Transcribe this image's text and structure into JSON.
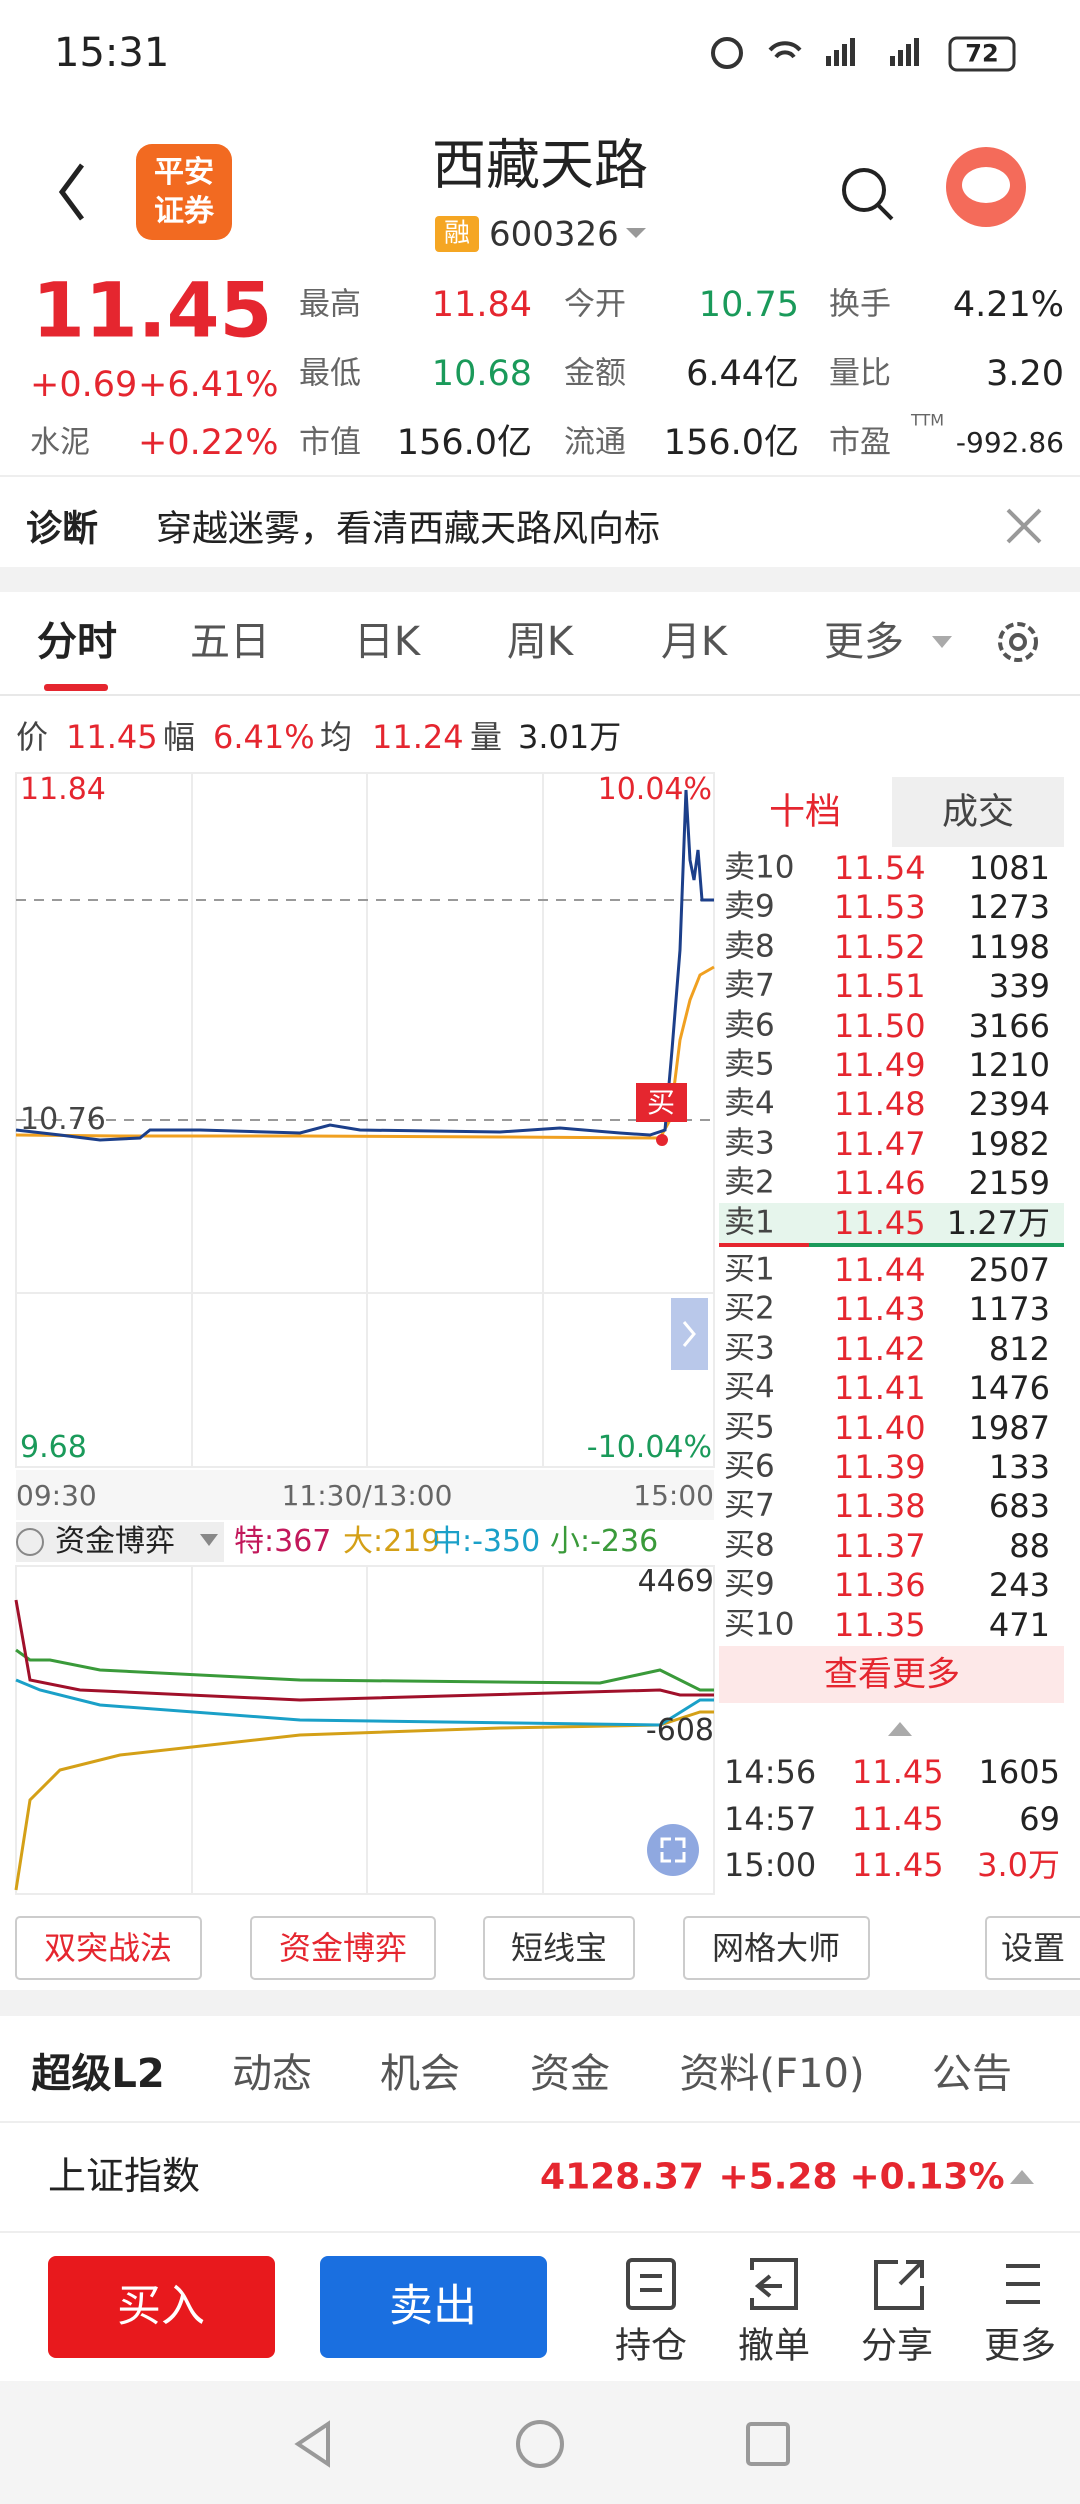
{
  "status_bar": {
    "time": "15:31",
    "battery": "72"
  },
  "header": {
    "logo": [
      "平安",
      "证券"
    ],
    "title": "西藏天路",
    "badge": "融",
    "code": "600326"
  },
  "quote": {
    "price": "11.45",
    "change": "+0.69",
    "change_pct": "+6.41%",
    "sector": "水泥",
    "sector_pct": "+0.22%",
    "ttm": "TTM",
    "stats": [
      [
        [
          "最高",
          "11.84"
        ],
        [
          "今开",
          "10.75"
        ],
        [
          "换手",
          "4.21%"
        ]
      ],
      [
        [
          "最低",
          "10.68"
        ],
        [
          "金额",
          "6.44亿"
        ],
        [
          "量比",
          "3.20"
        ]
      ],
      [
        [
          "市值",
          "156.0亿"
        ],
        [
          "流通",
          "156.0亿"
        ],
        [
          "市盈",
          "-992.86"
        ]
      ]
    ]
  },
  "diagnosis": {
    "label": "诊断",
    "text": "穿越迷雾，看清西藏天路风向标"
  },
  "chart_tabs": [
    "分时",
    "五日",
    "日K",
    "周K",
    "月K",
    "更多"
  ],
  "info": [
    [
      "价",
      "11.45"
    ],
    [
      "幅",
      "6.41%"
    ],
    [
      "均",
      "11.24"
    ],
    [
      "量",
      "3.01万"
    ]
  ],
  "intraday": {
    "high": "11.84",
    "high_pct": "10.04%",
    "prev_close": "10.76",
    "low": "9.68",
    "low_pct": "-10.04%",
    "times": [
      "09:30",
      "11:30/13:00",
      "15:00"
    ],
    "marker": "买"
  },
  "fund_flow": {
    "title": "资金博弈",
    "items": [
      "特:367",
      "大:219",
      "中:-350",
      "小:-236"
    ],
    "max": "4469",
    "min": "-608"
  },
  "order_book": {
    "tabs": [
      "十档",
      "成交"
    ],
    "asks": [
      [
        "卖10",
        "11.54",
        "1081"
      ],
      [
        "卖9",
        "11.53",
        "1273"
      ],
      [
        "卖8",
        "11.52",
        "1198"
      ],
      [
        "卖7",
        "11.51",
        "339"
      ],
      [
        "卖6",
        "11.50",
        "3166"
      ],
      [
        "卖5",
        "11.49",
        "1210"
      ],
      [
        "卖4",
        "11.48",
        "2394"
      ],
      [
        "卖3",
        "11.47",
        "1982"
      ],
      [
        "卖2",
        "11.46",
        "2159"
      ],
      [
        "卖1",
        "11.45",
        "1.27万"
      ]
    ],
    "bids": [
      [
        "买1",
        "11.44",
        "2507"
      ],
      [
        "买2",
        "11.43",
        "1173"
      ],
      [
        "买3",
        "11.42",
        "812"
      ],
      [
        "买4",
        "11.41",
        "1476"
      ],
      [
        "买5",
        "11.40",
        "1987"
      ],
      [
        "买6",
        "11.39",
        "133"
      ],
      [
        "买7",
        "11.38",
        "683"
      ],
      [
        "买8",
        "11.37",
        "88"
      ],
      [
        "买9",
        "11.36",
        "243"
      ],
      [
        "买10",
        "11.35",
        "471"
      ]
    ],
    "more": "查看更多",
    "trades": [
      [
        "14:56",
        "11.45",
        "1605"
      ],
      [
        "14:57",
        "11.45",
        "69"
      ],
      [
        "15:00",
        "11.45",
        "3.0万"
      ]
    ]
  },
  "tools": [
    "双突战法",
    "资金博弈",
    "短线宝",
    "网格大师",
    "设置"
  ],
  "tabs": [
    "超级L2",
    "动态",
    "机会",
    "资金",
    "资料(F10)",
    "公告"
  ],
  "index": {
    "name": "上证指数",
    "value": "4128.37",
    "change": "+5.28",
    "change_pct": "+0.13%"
  },
  "actions": {
    "buy": "买入",
    "sell": "卖出",
    "items": [
      "持仓",
      "撤单",
      "分享",
      "更多"
    ]
  }
}
